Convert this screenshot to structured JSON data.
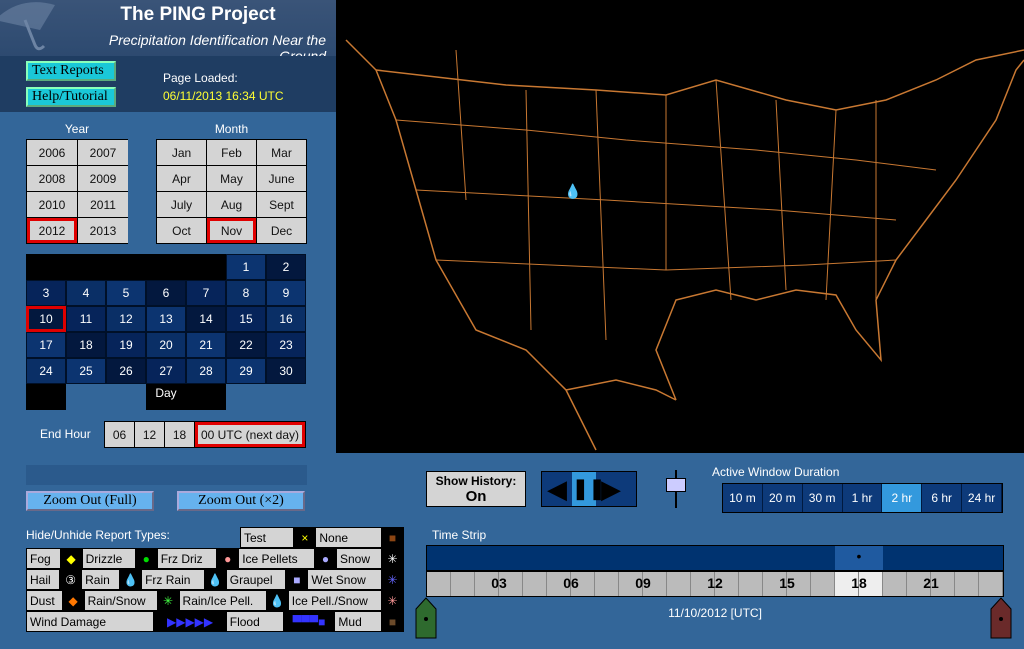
{
  "header": {
    "title": "The PING Project",
    "subtitle": "Precipitation Identification Near the Ground"
  },
  "buttons": {
    "text_reports": "Text Reports",
    "help": "Help/Tutorial",
    "zoom_full": "Zoom Out  (Full)",
    "zoom_x2": "Zoom Out    (×2)"
  },
  "page_loaded": {
    "label": "Page Loaded:",
    "value": "06/11/2013 16:34 UTC"
  },
  "year": {
    "label": "Year",
    "options": [
      "2006",
      "2007",
      "2008",
      "2009",
      "2010",
      "2011",
      "2012",
      "2013"
    ],
    "selected": "2012"
  },
  "month": {
    "label": "Month",
    "options": [
      "Jan",
      "Feb",
      "Mar",
      "Apr",
      "May",
      "June",
      "July",
      "Aug",
      "Sept",
      "Oct",
      "Nov",
      "Dec"
    ],
    "selected": "Nov"
  },
  "day": {
    "label": "Day",
    "selected": "10",
    "days": [
      "1",
      "2",
      "3",
      "4",
      "5",
      "6",
      "7",
      "8",
      "9",
      "10",
      "11",
      "12",
      "13",
      "14",
      "15",
      "16",
      "17",
      "18",
      "19",
      "20",
      "21",
      "22",
      "23",
      "24",
      "25",
      "26",
      "27",
      "28",
      "29",
      "30"
    ]
  },
  "end_hour": {
    "label": "End Hour",
    "options": [
      "06",
      "12",
      "18",
      "00 UTC (next day)"
    ],
    "selected": "00 UTC (next day)"
  },
  "report_types": {
    "label": "Hide/Unhide Report Types:",
    "rows": [
      [
        [
          "Test",
          "×",
          "#ffff00"
        ],
        [
          "None",
          "■",
          "#8b4513"
        ]
      ],
      [
        [
          "Fog",
          "◆",
          "#ffff00"
        ],
        [
          "Drizzle",
          "●",
          "#00dd00"
        ],
        [
          "Frz Driz",
          "●",
          "#ff9999"
        ],
        [
          "Ice Pellets",
          "●",
          "#aaaaff"
        ],
        [
          "Snow",
          "✳",
          "#ffffff"
        ]
      ],
      [
        [
          "Hail",
          "③",
          "#ffffff"
        ],
        [
          "Rain",
          "💧",
          "#00dd00"
        ],
        [
          "Frz Rain",
          "💧",
          "#ff9999"
        ],
        [
          "Graupel",
          "■",
          "#aaaaff"
        ],
        [
          "Wet Snow",
          "✳",
          "#6666ff"
        ]
      ],
      [
        [
          "Dust",
          "◆",
          "#ff7700"
        ],
        [
          "Rain/Snow",
          "✳",
          "#44ff44"
        ],
        [
          "Rain/Ice Pell.",
          "💧",
          "#aaaaff"
        ],
        [
          "Ice Pell./Snow",
          "✳",
          "#ff9999"
        ]
      ],
      [
        [
          "Wind Damage",
          "▶▶▶▶▶",
          ""
        ],
        [
          "Flood",
          "▀▀▀■",
          ""
        ],
        [
          "Mud",
          "■",
          "#6b4a2a"
        ]
      ]
    ]
  },
  "history": {
    "label": "Show History:",
    "value": "On"
  },
  "playback": {
    "prev": "◀",
    "pause": "❚❚",
    "next": "▶"
  },
  "duration": {
    "label": "Active Window Duration",
    "options": [
      "10 m",
      "20 m",
      "30 m",
      "1 hr",
      "2 hr",
      "6 hr",
      "24 hr"
    ],
    "selected": "2 hr"
  },
  "time_strip": {
    "label": "Time Strip",
    "ticks": [
      "03",
      "06",
      "09",
      "12",
      "15",
      "18",
      "21"
    ],
    "selected_hour": "18",
    "date": "11/10/2012 [UTC]"
  },
  "colors": {
    "map_border": "#c87832",
    "selected": "#e00000",
    "accent": "#3399dd"
  }
}
